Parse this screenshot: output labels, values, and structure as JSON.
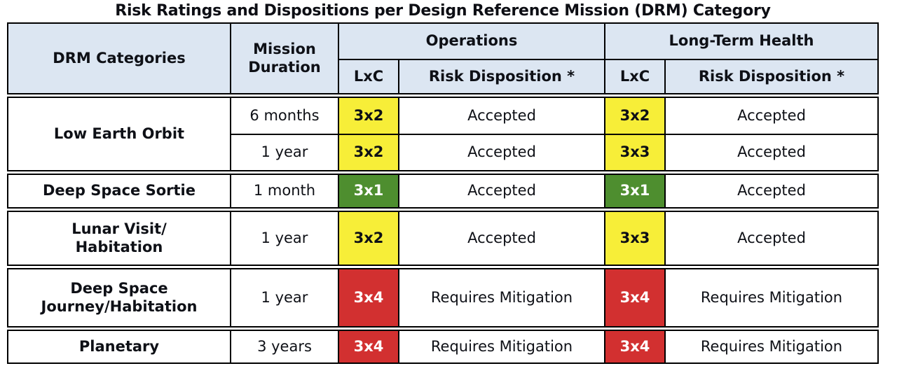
{
  "title": "Risk Ratings and Dispositions per Design Reference Mission (DRM) Category",
  "colors": {
    "header_bg": "#dce6f2",
    "yellow": "#f7ee38",
    "green": "#4e8e2f",
    "red": "#d23030",
    "border": "#000000",
    "text_dark": "#0e1016",
    "text_light": "#ffffff"
  },
  "header": {
    "drm": "DRM Categories",
    "duration": "Mission Duration",
    "operations": "Operations",
    "long_term_health": "Long-Term Health",
    "lxc": "LxC",
    "risk_disposition": "Risk Disposition *"
  },
  "rows": [
    {
      "category": "Low Earth Orbit",
      "subrows": [
        {
          "duration": "6 months",
          "ops_lxc": "3x2",
          "ops_level": "yellow",
          "ops_disp": "Accepted",
          "lth_lxc": "3x2",
          "lth_level": "yellow",
          "lth_disp": "Accepted"
        },
        {
          "duration": "1 year",
          "ops_lxc": "3x2",
          "ops_level": "yellow",
          "ops_disp": "Accepted",
          "lth_lxc": "3x3",
          "lth_level": "yellow",
          "lth_disp": "Accepted"
        }
      ]
    },
    {
      "category": "Deep Space Sortie",
      "duration": "1 month",
      "ops_lxc": "3x1",
      "ops_level": "green",
      "ops_disp": "Accepted",
      "lth_lxc": "3x1",
      "lth_level": "green",
      "lth_disp": "Accepted"
    },
    {
      "category": "Lunar Visit/\nHabitation",
      "duration": "1 year",
      "ops_lxc": "3x2",
      "ops_level": "yellow",
      "ops_disp": "Accepted",
      "lth_lxc": "3x3",
      "lth_level": "yellow",
      "lth_disp": "Accepted"
    },
    {
      "category": "Deep Space\nJourney/Habitation",
      "duration": "1 year",
      "ops_lxc": "3x4",
      "ops_level": "red",
      "ops_disp": "Requires Mitigation",
      "lth_lxc": "3x4",
      "lth_level": "red",
      "lth_disp": "Requires Mitigation"
    },
    {
      "category": "Planetary",
      "duration": "3 years",
      "ops_lxc": "3x4",
      "ops_level": "red",
      "ops_disp": "Requires Mitigation",
      "lth_lxc": "3x4",
      "lth_level": "red",
      "lth_disp": "Requires Mitigation"
    }
  ],
  "chart_data": {
    "type": "table",
    "title": "Risk Ratings and Dispositions per Design Reference Mission (DRM) Category",
    "columns": [
      "DRM Categories",
      "Mission Duration",
      "Operations LxC",
      "Operations Risk Disposition *",
      "Long-Term Health LxC",
      "Long-Term Health Risk Disposition *"
    ],
    "rows": [
      [
        "Low Earth Orbit",
        "6 months",
        "3x2",
        "Accepted",
        "3x2",
        "Accepted"
      ],
      [
        "Low Earth Orbit",
        "1 year",
        "3x2",
        "Accepted",
        "3x3",
        "Accepted"
      ],
      [
        "Deep Space Sortie",
        "1 month",
        "3x1",
        "Accepted",
        "3x1",
        "Accepted"
      ],
      [
        "Lunar Visit/Habitation",
        "1 year",
        "3x2",
        "Accepted",
        "3x3",
        "Accepted"
      ],
      [
        "Deep Space Journey/Habitation",
        "1 year",
        "3x4",
        "Requires Mitigation",
        "3x4",
        "Requires Mitigation"
      ],
      [
        "Planetary",
        "3 years",
        "3x4",
        "Requires Mitigation",
        "3x4",
        "Requires Mitigation"
      ]
    ],
    "cell_color_legend": {
      "3x1": "green",
      "3x2": "yellow",
      "3x3": "yellow",
      "3x4": "red"
    },
    "layout": "Column 1 groups: Low Earth Orbit spans two duration rows; header has two tiers (Operations and Long-Term Health each split into LxC and Risk Disposition *)"
  }
}
